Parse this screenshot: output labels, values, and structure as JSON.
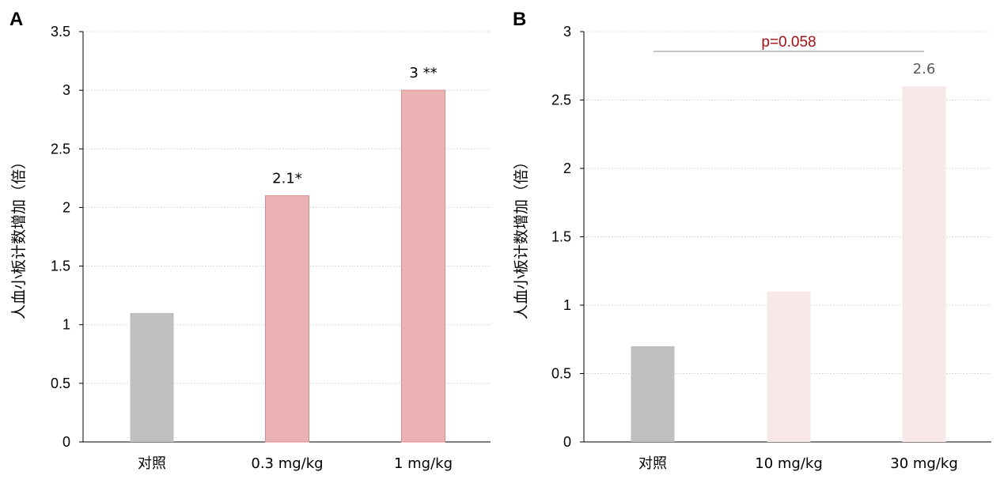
{
  "chart_data": [
    {
      "type": "bar",
      "panel": "A",
      "categories": [
        "对照",
        "0.3 mg/kg",
        "1 mg/kg"
      ],
      "values": [
        1.1,
        2.1,
        3
      ],
      "data_labels": [
        "",
        "2.1*",
        "3 **"
      ],
      "ylabel": "人血小板计数增加（倍）",
      "xlabel": "",
      "ylim": [
        0,
        3.5
      ],
      "yticks": [
        "0",
        "0.5",
        "1",
        "1.5",
        "2",
        "2.5",
        "3",
        "3.5"
      ],
      "grid": "horizontal dotted",
      "colors": [
        "#bfbfbf",
        "#eab2b2",
        "#eab2b2"
      ],
      "annotation": ""
    },
    {
      "type": "bar",
      "panel": "B",
      "categories": [
        "对照",
        "10 mg/kg",
        "30 mg/kg"
      ],
      "values": [
        0.7,
        1.1,
        2.6
      ],
      "data_labels": [
        "",
        "",
        "2.6"
      ],
      "ylabel": "人血小板计数增加（倍）",
      "xlabel": "",
      "ylim": [
        0,
        3
      ],
      "yticks": [
        "0",
        "0.5",
        "1",
        "1.5",
        "2",
        "2.5",
        "3"
      ],
      "grid": "horizontal dotted",
      "colors": [
        "#bfbfbf",
        "#f8e8e8",
        "#f8e8e8"
      ],
      "annotation": "p=0.058",
      "annotation_color": "#a50f15"
    }
  ]
}
